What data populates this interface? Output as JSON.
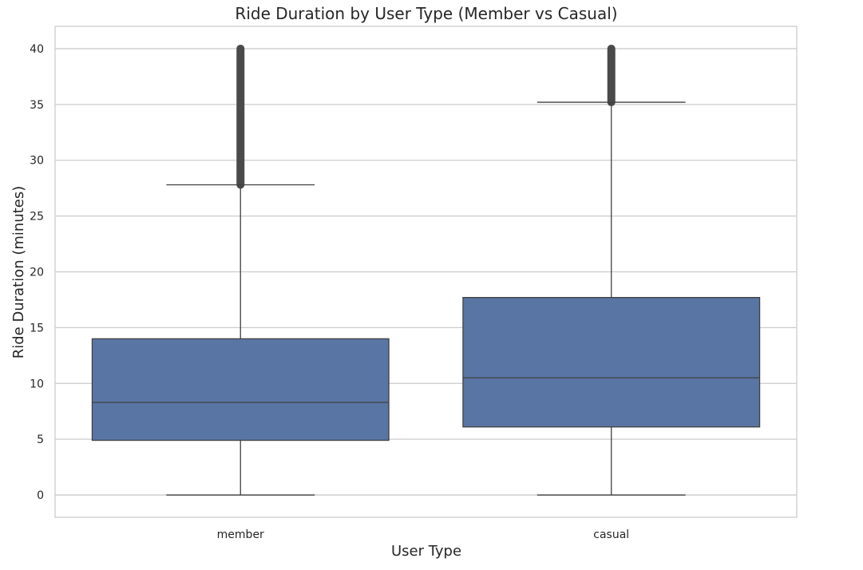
{
  "chart_data": {
    "type": "box",
    "title": "Ride Duration by User Type (Member vs Casual)",
    "xlabel": "User Type",
    "ylabel": "Ride Duration (minutes)",
    "ylim": [
      -2,
      42
    ],
    "yticks": [
      0,
      5,
      10,
      15,
      20,
      25,
      30,
      35,
      40
    ],
    "grid": true,
    "box_color": "#5975a4",
    "line_color": "#404040",
    "outlier_color": "#4a4a4a",
    "categories": [
      "member",
      "casual"
    ],
    "boxes": [
      {
        "category": "member",
        "whisker_low": 0,
        "q1": 4.9,
        "median": 8.3,
        "q3": 14.0,
        "whisker_high": 27.8,
        "outlier_range": [
          27.8,
          40
        ]
      },
      {
        "category": "casual",
        "whisker_low": 0,
        "q1": 6.1,
        "median": 10.5,
        "q3": 17.7,
        "whisker_high": 35.2,
        "outlier_range": [
          35.2,
          40
        ]
      }
    ]
  }
}
